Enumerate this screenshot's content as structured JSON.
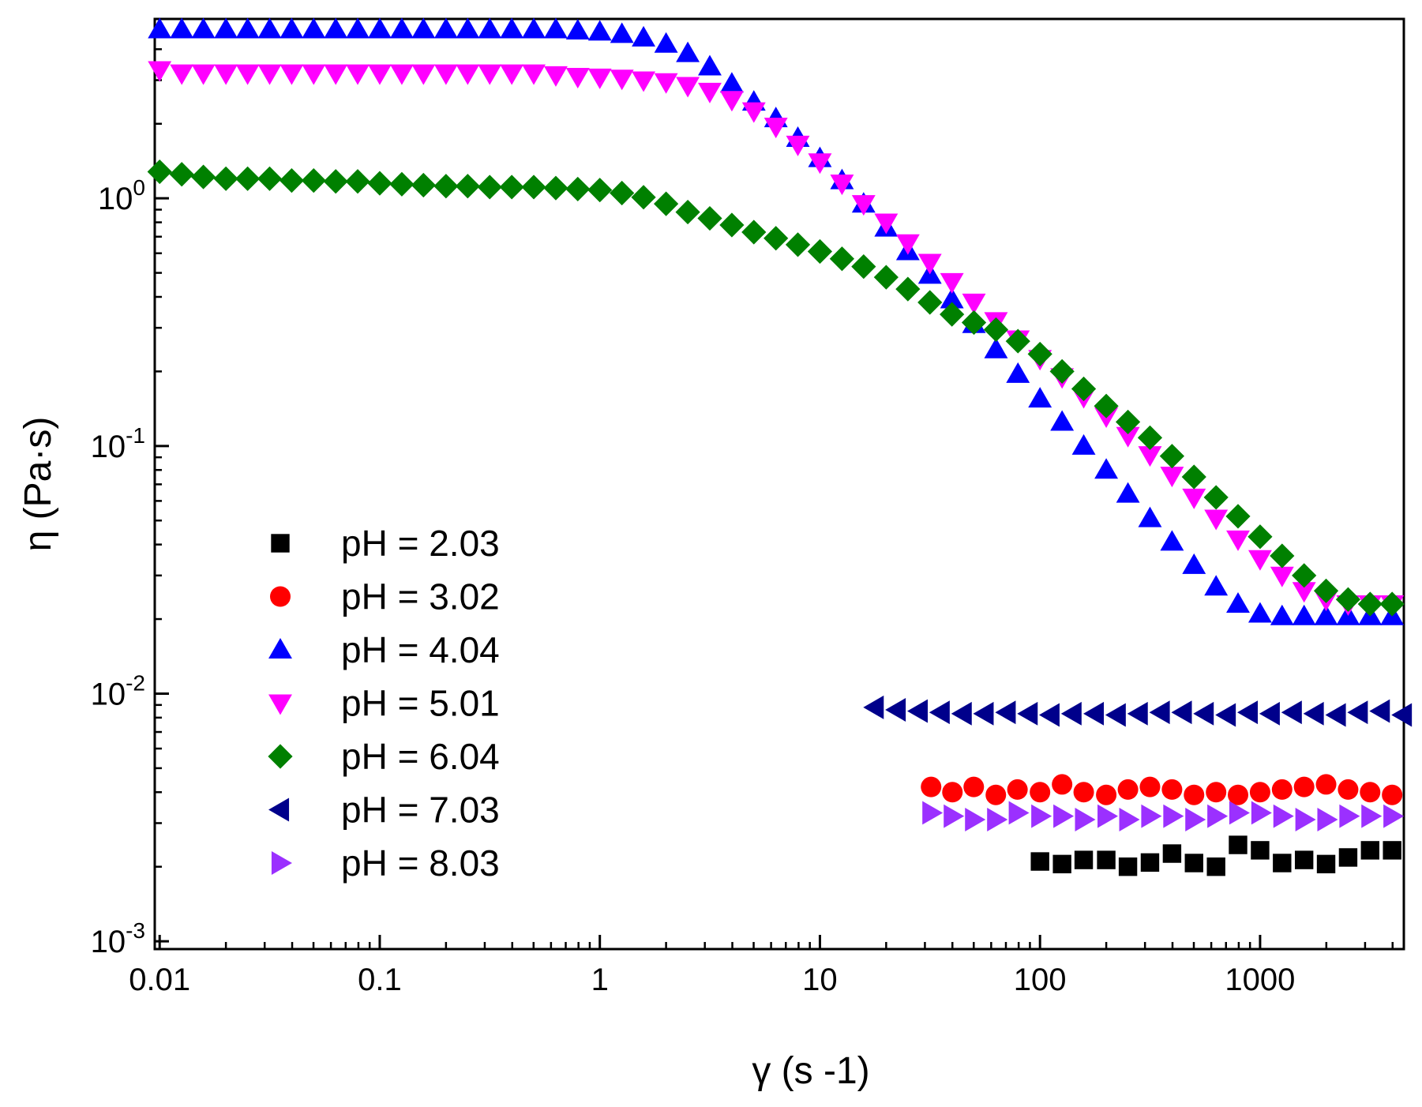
{
  "chart_data": {
    "type": "scatter",
    "xlabel": "γ (s -1)",
    "ylabel": "η (Pa·s)",
    "xscale": "log",
    "yscale": "log",
    "xlim": [
      0.0095,
      4500
    ],
    "ylim": [
      0.00093,
      5.3
    ],
    "grid": false,
    "legend_position": "left-middle",
    "x_ticks": [
      {
        "value": 0.01,
        "label": "0.01"
      },
      {
        "value": 0.1,
        "label": "0.1"
      },
      {
        "value": 1,
        "label": "1"
      },
      {
        "value": 10,
        "label": "10"
      },
      {
        "value": 100,
        "label": "100"
      },
      {
        "value": 1000,
        "label": "1000"
      }
    ],
    "y_ticks": [
      {
        "value": 0.001,
        "base": "10",
        "exp": "-3"
      },
      {
        "value": 0.01,
        "base": "10",
        "exp": "-2"
      },
      {
        "value": 0.1,
        "base": "10",
        "exp": "-1"
      },
      {
        "value": 1,
        "base": "10",
        "exp": "0"
      }
    ],
    "series": [
      {
        "name": "pH = 2.03",
        "marker": "square",
        "color": "#000000",
        "x": [
          100,
          126,
          158,
          200,
          251,
          316,
          398,
          501,
          631,
          794,
          1000,
          1259,
          1585,
          1995,
          2512,
          3162,
          3981
        ],
        "y": [
          0.0021,
          0.00205,
          0.00213,
          0.00213,
          0.002,
          0.00208,
          0.00226,
          0.00207,
          0.002,
          0.00245,
          0.00233,
          0.00207,
          0.00213,
          0.00205,
          0.00218,
          0.00233,
          0.00233
        ]
      },
      {
        "name": "pH = 3.02",
        "marker": "circle",
        "color": "#ff0000",
        "x": [
          32,
          40,
          50,
          63,
          79,
          100,
          126,
          158,
          200,
          251,
          316,
          398,
          501,
          631,
          794,
          1000,
          1259,
          1585,
          1995,
          2512,
          3162,
          3981
        ],
        "y": [
          0.0042,
          0.004,
          0.0042,
          0.0039,
          0.0041,
          0.004,
          0.0043,
          0.004,
          0.0039,
          0.0041,
          0.0042,
          0.0041,
          0.0039,
          0.004,
          0.0039,
          0.004,
          0.0041,
          0.0042,
          0.0043,
          0.0041,
          0.004,
          0.0039
        ]
      },
      {
        "name": "pH = 4.04",
        "marker": "triangle-up",
        "color": "#0000ff",
        "x": [
          0.01,
          0.0126,
          0.0158,
          0.02,
          0.0251,
          0.0316,
          0.0398,
          0.0501,
          0.0631,
          0.0794,
          0.1,
          0.126,
          0.158,
          0.2,
          0.251,
          0.316,
          0.398,
          0.501,
          0.631,
          0.794,
          1,
          1.26,
          1.58,
          2,
          2.51,
          3.16,
          3.98,
          5.01,
          6.31,
          7.94,
          10,
          12.6,
          15.8,
          20,
          25.1,
          31.6,
          39.8,
          50.1,
          63.1,
          79.4,
          100,
          126,
          158,
          200,
          251,
          316,
          398,
          501,
          631,
          794,
          1000,
          1259,
          1585,
          1995,
          2512,
          3162,
          3981
        ],
        "y": [
          4.8,
          4.8,
          4.8,
          4.8,
          4.8,
          4.8,
          4.8,
          4.8,
          4.8,
          4.8,
          4.8,
          4.8,
          4.8,
          4.8,
          4.8,
          4.8,
          4.8,
          4.8,
          4.8,
          4.75,
          4.7,
          4.6,
          4.45,
          4.2,
          3.85,
          3.4,
          2.9,
          2.45,
          2.1,
          1.75,
          1.45,
          1.18,
          0.95,
          0.76,
          0.61,
          0.49,
          0.39,
          0.31,
          0.245,
          0.195,
          0.155,
          0.125,
          0.1,
          0.08,
          0.064,
          0.051,
          0.041,
          0.033,
          0.027,
          0.023,
          0.021,
          0.0205,
          0.0205,
          0.0205,
          0.0205,
          0.0205,
          0.0205
        ]
      },
      {
        "name": "pH = 5.01",
        "marker": "triangle-down",
        "color": "#ff00ff",
        "x": [
          0.01,
          0.0126,
          0.0158,
          0.02,
          0.0251,
          0.0316,
          0.0398,
          0.0501,
          0.0631,
          0.0794,
          0.1,
          0.126,
          0.158,
          0.2,
          0.251,
          0.316,
          0.398,
          0.501,
          0.631,
          0.794,
          1,
          1.26,
          1.58,
          2,
          2.51,
          3.16,
          3.98,
          5.01,
          6.31,
          7.94,
          10,
          12.6,
          15.8,
          20,
          25.1,
          31.6,
          39.8,
          50.1,
          63.1,
          79.4,
          100,
          126,
          158,
          200,
          251,
          316,
          398,
          501,
          631,
          794,
          1000,
          1259,
          1585,
          1995,
          2512,
          3162,
          3981
        ],
        "y": [
          3.3,
          3.2,
          3.2,
          3.2,
          3.2,
          3.2,
          3.2,
          3.2,
          3.2,
          3.2,
          3.2,
          3.2,
          3.2,
          3.2,
          3.2,
          3.2,
          3.2,
          3.2,
          3.15,
          3.1,
          3.08,
          3.05,
          3.0,
          2.95,
          2.85,
          2.7,
          2.5,
          2.25,
          1.95,
          1.65,
          1.4,
          1.15,
          0.95,
          0.8,
          0.66,
          0.55,
          0.46,
          0.38,
          0.32,
          0.27,
          0.225,
          0.19,
          0.158,
          0.132,
          0.11,
          0.092,
          0.076,
          0.062,
          0.051,
          0.042,
          0.035,
          0.03,
          0.026,
          0.024,
          0.023,
          0.023,
          0.023
        ]
      },
      {
        "name": "pH = 6.04",
        "marker": "diamond",
        "color": "#008000",
        "x": [
          0.01,
          0.0126,
          0.0158,
          0.02,
          0.0251,
          0.0316,
          0.0398,
          0.0501,
          0.0631,
          0.0794,
          0.1,
          0.126,
          0.158,
          0.2,
          0.251,
          0.316,
          0.398,
          0.501,
          0.631,
          0.794,
          1,
          1.26,
          1.58,
          2,
          2.51,
          3.16,
          3.98,
          5.01,
          6.31,
          7.94,
          10,
          12.6,
          15.8,
          20,
          25.1,
          31.6,
          39.8,
          50.1,
          63.1,
          79.4,
          100,
          126,
          158,
          200,
          251,
          316,
          398,
          501,
          631,
          794,
          1000,
          1259,
          1585,
          1995,
          2512,
          3162,
          3981
        ],
        "y": [
          1.28,
          1.25,
          1.22,
          1.2,
          1.2,
          1.2,
          1.18,
          1.18,
          1.17,
          1.17,
          1.15,
          1.14,
          1.13,
          1.12,
          1.12,
          1.11,
          1.11,
          1.11,
          1.1,
          1.09,
          1.08,
          1.05,
          1.01,
          0.95,
          0.88,
          0.83,
          0.78,
          0.73,
          0.69,
          0.65,
          0.61,
          0.57,
          0.53,
          0.48,
          0.43,
          0.38,
          0.34,
          0.315,
          0.295,
          0.265,
          0.235,
          0.2,
          0.17,
          0.145,
          0.125,
          0.108,
          0.091,
          0.075,
          0.062,
          0.052,
          0.043,
          0.036,
          0.03,
          0.026,
          0.024,
          0.023,
          0.023
        ]
      },
      {
        "name": "pH = 7.03",
        "marker": "triangle-left",
        "color": "#00008b",
        "x": [
          17.8,
          22.4,
          28.2,
          35.5,
          44.7,
          56.2,
          70.8,
          89.1,
          112,
          141,
          178,
          224,
          282,
          355,
          447,
          562,
          708,
          891,
          1122,
          1413,
          1778,
          2239,
          2818,
          3548,
          4467
        ],
        "y": [
          0.0088,
          0.0086,
          0.0085,
          0.0084,
          0.0083,
          0.0083,
          0.0084,
          0.0083,
          0.0082,
          0.0083,
          0.0083,
          0.0082,
          0.0083,
          0.0084,
          0.0084,
          0.0083,
          0.0082,
          0.0084,
          0.0083,
          0.0084,
          0.0083,
          0.0082,
          0.0084,
          0.0085,
          0.0082
        ]
      },
      {
        "name": "pH = 8.03",
        "marker": "triangle-right",
        "color": "#9b30ff",
        "x": [
          32,
          40,
          50,
          63,
          79,
          100,
          126,
          158,
          200,
          251,
          316,
          398,
          501,
          631,
          794,
          1000,
          1259,
          1585,
          1995,
          2512,
          3162,
          3981
        ],
        "y": [
          0.0033,
          0.0032,
          0.0031,
          0.0031,
          0.0033,
          0.0032,
          0.0032,
          0.0031,
          0.0032,
          0.0031,
          0.0032,
          0.0032,
          0.0031,
          0.0032,
          0.0033,
          0.0033,
          0.0032,
          0.0031,
          0.0031,
          0.0032,
          0.0032,
          0.0032
        ]
      }
    ]
  }
}
